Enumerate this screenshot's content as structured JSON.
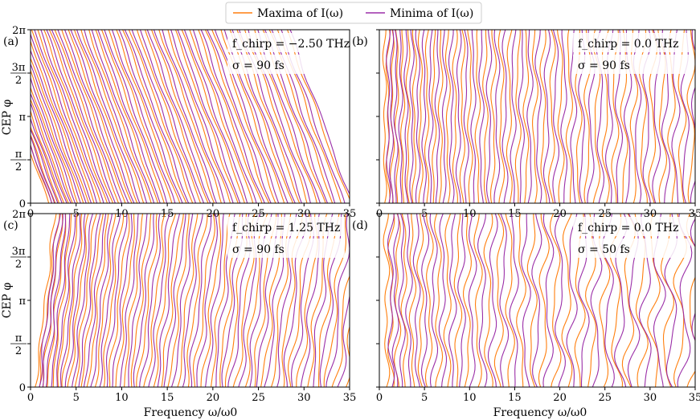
{
  "legend": {
    "items": [
      {
        "label": "Maxima of I(ω)",
        "color": "#ff7f0e"
      },
      {
        "label": "Minima of I(ω)",
        "color": "#9b2fa8"
      }
    ]
  },
  "colors": {
    "maxima": "#ff7f0e",
    "minima": "#9b2fa8"
  },
  "chart_data": [
    {
      "type": "line",
      "panel": "(a)",
      "annotation": {
        "line1": "f_chirp = −2.50 THz",
        "line2": "σ = 90 fs"
      },
      "xlabel": "",
      "ylabel": "CEP φ",
      "xlim": [
        0,
        35
      ],
      "ylim": [
        0,
        6.2832
      ],
      "xticks": [
        0,
        5,
        10,
        15,
        20,
        25,
        30,
        35
      ],
      "yticks": [
        "0",
        "π/2",
        "π",
        "3π/2",
        "2π"
      ],
      "series": [
        {
          "name": "Maxima of I(ω)",
          "x_at_phi0_start": 2.0,
          "x_at_phi0_end": 35.0,
          "count": 46,
          "slope": -1.1,
          "wiggle": 0.1
        },
        {
          "name": "Minima of I(ω)",
          "x_at_phi0_start": 2.3,
          "x_at_phi0_end": 35.3,
          "count": 46,
          "slope": -1.1,
          "wiggle": 0.1
        }
      ]
    },
    {
      "type": "line",
      "panel": "(b)",
      "annotation": {
        "line1": "f_chirp = 0.0 THz",
        "line2": "σ = 90 fs"
      },
      "xlabel": "",
      "ylabel": "",
      "xlim": [
        0,
        35
      ],
      "ylim": [
        0,
        6.2832
      ],
      "xticks": [
        0,
        5,
        10,
        15,
        20,
        25,
        30,
        35
      ],
      "yticks": [
        "0",
        "π/2",
        "π",
        "3π/2",
        "2π"
      ],
      "series": [
        {
          "name": "Maxima of I(ω)",
          "x_at_phi0_start": 0.6,
          "x_at_phi0_end": 34.6,
          "count": 40,
          "slope": 0.0,
          "wiggle": 0.28
        },
        {
          "name": "Minima of I(ω)",
          "x_at_phi0_start": 1.0,
          "x_at_phi0_end": 35.0,
          "count": 40,
          "slope": 0.0,
          "wiggle": 0.28
        }
      ]
    },
    {
      "type": "line",
      "panel": "(c)",
      "annotation": {
        "line1": "f_chirp = 1.25 THz",
        "line2": "σ = 90 fs"
      },
      "xlabel": "Frequency ω/ω0",
      "ylabel": "CEP φ",
      "xlim": [
        0,
        35
      ],
      "ylim": [
        0,
        6.2832
      ],
      "xticks": [
        0,
        5,
        10,
        15,
        20,
        25,
        30,
        35
      ],
      "yticks": [
        "0",
        "π/2",
        "π",
        "3π/2",
        "2π"
      ],
      "series": [
        {
          "name": "Maxima of I(ω)",
          "x_at_phi0_start": 0.5,
          "x_at_phi0_end": 34.5,
          "count": 42,
          "slope": 0.35,
          "wiggle": 0.25
        },
        {
          "name": "Minima of I(ω)",
          "x_at_phi0_start": 0.9,
          "x_at_phi0_end": 34.9,
          "count": 42,
          "slope": 0.35,
          "wiggle": 0.25
        }
      ]
    },
    {
      "type": "line",
      "panel": "(d)",
      "annotation": {
        "line1": "f_chirp = 0.0 THz",
        "line2": "σ = 50 fs"
      },
      "xlabel": "Frequency ω/ω0",
      "ylabel": "",
      "xlim": [
        0,
        35
      ],
      "ylim": [
        0,
        6.2832
      ],
      "xticks": [
        0,
        5,
        10,
        15,
        20,
        25,
        30,
        35
      ],
      "yticks": [
        "0",
        "π/2",
        "π",
        "3π/2",
        "2π"
      ],
      "series": [
        {
          "name": "Maxima of I(ω)",
          "x_at_phi0_start": 0.8,
          "x_at_phi0_end": 34.8,
          "count": 30,
          "slope": 0.0,
          "wiggle": 0.45
        },
        {
          "name": "Minima of I(ω)",
          "x_at_phi0_start": 1.3,
          "x_at_phi0_end": 35.3,
          "count": 30,
          "slope": 0.0,
          "wiggle": 0.45
        }
      ]
    }
  ]
}
